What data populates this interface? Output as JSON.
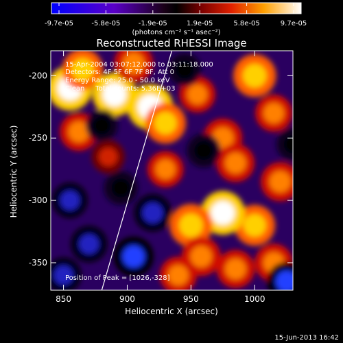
{
  "colorbar": {
    "tick_labels": [
      "-9.7e-05",
      "-5.8e-05",
      "-1.9e-05",
      "1.9e-05",
      "5.8e-05",
      "9.7e-05"
    ],
    "range": [
      -9.7e-05,
      9.7e-05
    ],
    "unit_label": "(photons cm⁻² s⁻¹ asec⁻²)"
  },
  "chart_data": {
    "type": "heatmap",
    "title": "Reconstructed RHESSI Image",
    "xlabel": "Heliocentric X (arcsec)",
    "ylabel": "Heliocentric Y (arcsec)",
    "xlim": [
      840,
      1030
    ],
    "ylim": [
      -372,
      -180
    ],
    "xticks": [
      850,
      900,
      950,
      1000
    ],
    "yticks": [
      -200,
      -250,
      -300,
      -350
    ],
    "limb_line": [
      [
        880,
        -372
      ],
      [
        935,
        -180
      ]
    ],
    "blobs": [
      {
        "x": 855,
        "y": -210,
        "v": 0.9
      },
      {
        "x": 865,
        "y": -195,
        "v": 0.7
      },
      {
        "x": 890,
        "y": -215,
        "v": 0.85
      },
      {
        "x": 905,
        "y": -190,
        "v": 0.6
      },
      {
        "x": 918,
        "y": -225,
        "v": 0.95
      },
      {
        "x": 930,
        "y": -238,
        "v": 0.7
      },
      {
        "x": 862,
        "y": -245,
        "v": 0.55
      },
      {
        "x": 885,
        "y": -265,
        "v": 0.3
      },
      {
        "x": 955,
        "y": -215,
        "v": 0.45
      },
      {
        "x": 975,
        "y": -250,
        "v": 0.6
      },
      {
        "x": 985,
        "y": -270,
        "v": 0.55
      },
      {
        "x": 1000,
        "y": -200,
        "v": 0.8
      },
      {
        "x": 1015,
        "y": -230,
        "v": 0.5
      },
      {
        "x": 1020,
        "y": -285,
        "v": 0.6
      },
      {
        "x": 1000,
        "y": -320,
        "v": 0.7
      },
      {
        "x": 1015,
        "y": -350,
        "v": 0.55
      },
      {
        "x": 975,
        "y": -310,
        "v": 0.85
      },
      {
        "x": 950,
        "y": -320,
        "v": 0.8
      },
      {
        "x": 958,
        "y": -345,
        "v": 0.6
      },
      {
        "x": 940,
        "y": -360,
        "v": 0.5
      },
      {
        "x": 985,
        "y": -355,
        "v": 0.55
      },
      {
        "x": 930,
        "y": -275,
        "v": 0.45
      },
      {
        "x": 855,
        "y": -300,
        "v": -0.4
      },
      {
        "x": 870,
        "y": -335,
        "v": -0.45
      },
      {
        "x": 905,
        "y": -345,
        "v": -0.65
      },
      {
        "x": 920,
        "y": -310,
        "v": -0.5
      },
      {
        "x": 895,
        "y": -290,
        "v": -0.35
      },
      {
        "x": 850,
        "y": -360,
        "v": -0.4
      },
      {
        "x": 880,
        "y": -240,
        "v": -0.25
      },
      {
        "x": 945,
        "y": -195,
        "v": -0.3
      },
      {
        "x": 960,
        "y": -260,
        "v": -0.35
      },
      {
        "x": 1025,
        "y": -365,
        "v": -0.6
      },
      {
        "x": 1030,
        "y": -255,
        "v": -0.3
      }
    ]
  },
  "annotations": {
    "time_range": "15-Apr-2004 03:07:12.000 to 03:11:18.000",
    "detectors": "Detectors: 4F 5F 6F 7F 8F, Att 0",
    "energy": "Energy Range: 25.0 - 50.0 keV",
    "clean": "Clean     Total counts: 5.36E+03",
    "peak": "Position of Peak = [1026,-328]"
  },
  "footer": {
    "timestamp": "15-Jun-2013 16:42"
  }
}
